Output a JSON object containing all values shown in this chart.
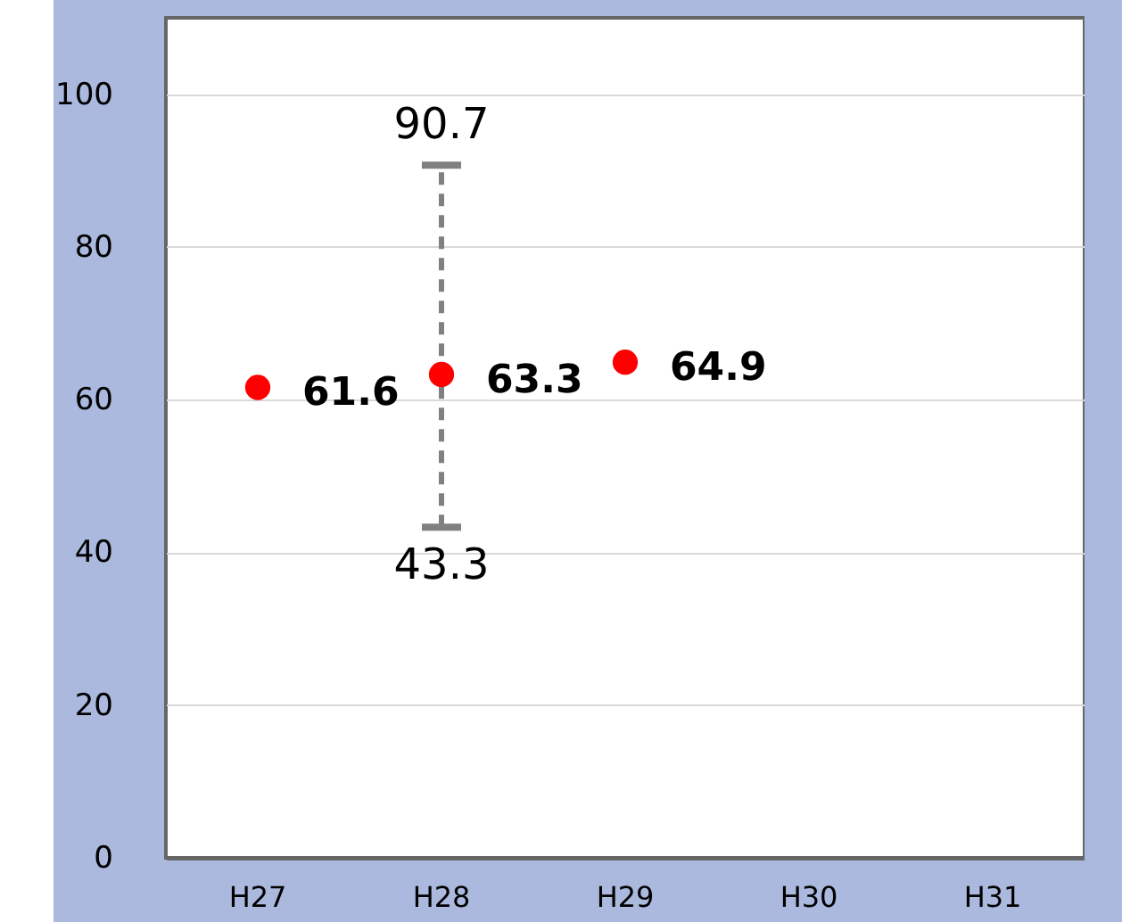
{
  "chart_data": {
    "type": "scatter",
    "categories": [
      "H27",
      "H28",
      "H29",
      "H30",
      "H31"
    ],
    "values": [
      61.6,
      63.3,
      64.9,
      null,
      null
    ],
    "errors": [
      null,
      [
        43.3,
        90.7
      ],
      null,
      null,
      null
    ],
    "color": "#ff0000",
    "data_labels": true,
    "annotations": [
      {
        "text": "90.7",
        "x": "H28",
        "y": 90.7
      },
      {
        "text": "43.3",
        "x": "H28",
        "y": 43.3
      }
    ],
    "ylim": [
      0,
      110
    ],
    "yticks": [
      0,
      20,
      40,
      60,
      80,
      100
    ],
    "grid": "y",
    "marker": "circle"
  }
}
